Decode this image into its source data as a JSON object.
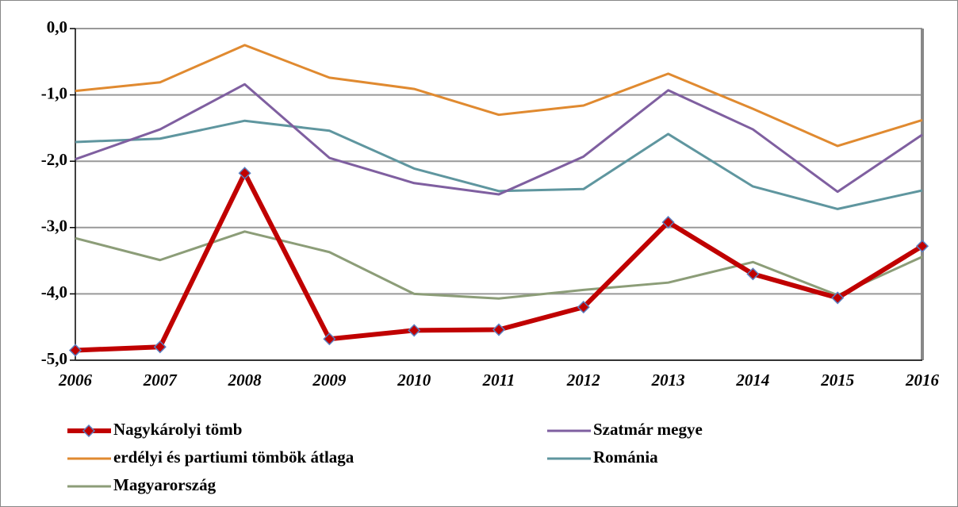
{
  "chart_data": {
    "type": "line",
    "categories": [
      "2006",
      "2007",
      "2008",
      "2009",
      "2010",
      "2011",
      "2012",
      "2013",
      "2014",
      "2015",
      "2016"
    ],
    "ylim": [
      -5,
      0
    ],
    "yticks": [
      {
        "value": 0,
        "label": "0,0"
      },
      {
        "value": -1,
        "label": "-1,0"
      },
      {
        "value": -2,
        "label": "-2,0"
      },
      {
        "value": -3,
        "label": "-3,0"
      },
      {
        "value": -4,
        "label": "-4,0"
      },
      {
        "value": -5,
        "label": "-5,0"
      }
    ],
    "grid": true,
    "series": [
      {
        "name": "Nagykárolyi tömb",
        "color": "#c00000",
        "marker": "diamond",
        "values": [
          -4.85,
          -4.8,
          -2.18,
          -4.68,
          -4.55,
          -4.54,
          -4.2,
          -2.92,
          -3.7,
          -4.06,
          -3.28
        ]
      },
      {
        "name": "Szatmár megye",
        "color": "#7f5fa0",
        "values": [
          -1.97,
          -1.52,
          -0.84,
          -1.95,
          -2.33,
          -2.5,
          -1.93,
          -0.93,
          -1.52,
          -2.46,
          -1.6
        ]
      },
      {
        "name": "erdélyi és partiumi tömbök átlaga",
        "color": "#e08a30",
        "values": [
          -0.94,
          -0.81,
          -0.25,
          -0.74,
          -0.91,
          -1.3,
          -1.16,
          -0.68,
          -1.21,
          -1.77,
          -1.38
        ]
      },
      {
        "name": "Románia",
        "color": "#5f969f",
        "values": [
          -1.71,
          -1.66,
          -1.39,
          -1.54,
          -2.11,
          -2.45,
          -2.42,
          -1.59,
          -2.38,
          -2.72,
          -2.44
        ]
      },
      {
        "name": "Magyarország",
        "color": "#8c9d78",
        "values": [
          -3.16,
          -3.49,
          -3.06,
          -3.37,
          -4.0,
          -4.07,
          -3.94,
          -3.83,
          -3.52,
          -4.02,
          -3.44
        ]
      }
    ]
  }
}
